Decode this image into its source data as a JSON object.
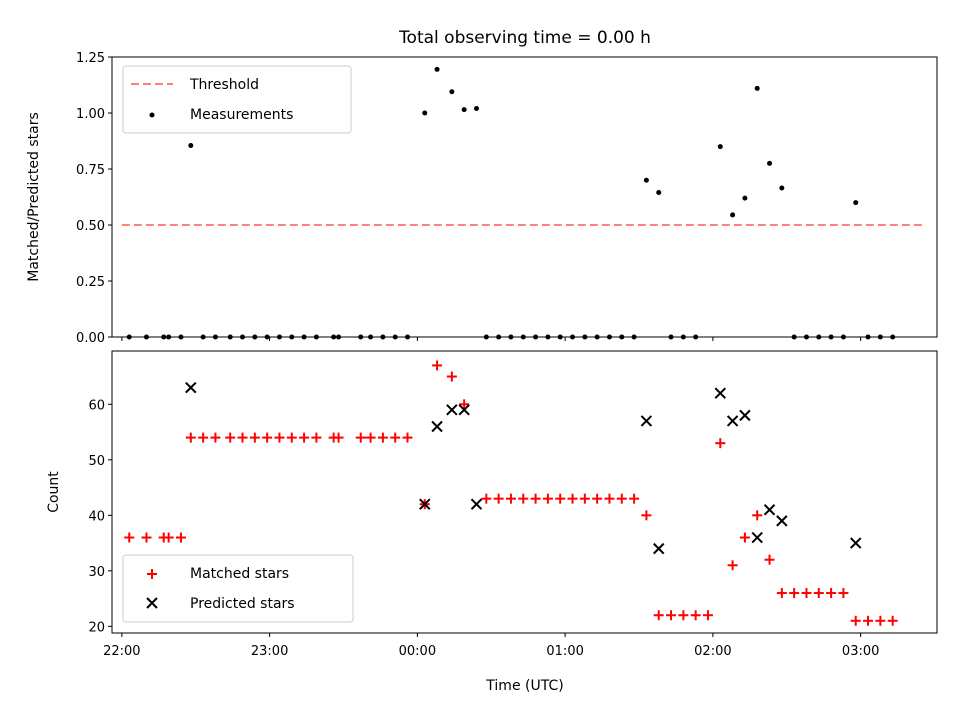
{
  "chart_data": [
    {
      "type": "scatter",
      "title": "Total observing time = 0.00 h",
      "xlabel": "",
      "ylabel": "Matched/Predicted stars",
      "xlim": [
        "21:56",
        "03:31"
      ],
      "ylim": [
        0,
        1.25
      ],
      "y_ticks": [
        "0.00",
        "0.25",
        "0.50",
        "0.75",
        "1.00",
        "1.25"
      ],
      "legend_placement": "upper-left",
      "series": [
        {
          "name": "Threshold",
          "style": "dashed-line",
          "color": "#ff7f7f",
          "points": [
            {
              "x": "22:00",
              "y": 0.5
            },
            {
              "x": "03:25",
              "y": 0.5
            }
          ]
        },
        {
          "name": "Measurements",
          "style": "dot",
          "color": "#000000",
          "points": [
            {
              "x": "22:03",
              "y": 0
            },
            {
              "x": "22:10",
              "y": 0
            },
            {
              "x": "22:17",
              "y": 0
            },
            {
              "x": "22:19",
              "y": 0
            },
            {
              "x": "22:24",
              "y": 0
            },
            {
              "x": "22:28",
              "y": 0.855
            },
            {
              "x": "22:33",
              "y": 0
            },
            {
              "x": "22:38",
              "y": 0
            },
            {
              "x": "22:44",
              "y": 0
            },
            {
              "x": "22:49",
              "y": 0
            },
            {
              "x": "22:54",
              "y": 0
            },
            {
              "x": "22:59",
              "y": 0
            },
            {
              "x": "23:04",
              "y": 0
            },
            {
              "x": "23:09",
              "y": 0
            },
            {
              "x": "23:14",
              "y": 0
            },
            {
              "x": "23:19",
              "y": 0
            },
            {
              "x": "23:26",
              "y": 0
            },
            {
              "x": "23:28",
              "y": 0
            },
            {
              "x": "23:37",
              "y": 0
            },
            {
              "x": "23:41",
              "y": 0
            },
            {
              "x": "23:46",
              "y": 0
            },
            {
              "x": "23:51",
              "y": 0
            },
            {
              "x": "23:56",
              "y": 0
            },
            {
              "x": "00:03",
              "y": 1.0
            },
            {
              "x": "00:08",
              "y": 1.195
            },
            {
              "x": "00:14",
              "y": 1.095
            },
            {
              "x": "00:19",
              "y": 1.015
            },
            {
              "x": "00:24",
              "y": 1.02
            },
            {
              "x": "00:28",
              "y": 0
            },
            {
              "x": "00:33",
              "y": 0
            },
            {
              "x": "00:38",
              "y": 0
            },
            {
              "x": "00:43",
              "y": 0
            },
            {
              "x": "00:48",
              "y": 0
            },
            {
              "x": "00:53",
              "y": 0
            },
            {
              "x": "00:58",
              "y": 0
            },
            {
              "x": "01:03",
              "y": 0
            },
            {
              "x": "01:08",
              "y": 0
            },
            {
              "x": "01:13",
              "y": 0
            },
            {
              "x": "01:18",
              "y": 0
            },
            {
              "x": "01:23",
              "y": 0
            },
            {
              "x": "01:28",
              "y": 0
            },
            {
              "x": "01:33",
              "y": 0.7
            },
            {
              "x": "01:38",
              "y": 0.645
            },
            {
              "x": "01:43",
              "y": 0
            },
            {
              "x": "01:48",
              "y": 0
            },
            {
              "x": "01:53",
              "y": 0
            },
            {
              "x": "02:03",
              "y": 0.85
            },
            {
              "x": "02:08",
              "y": 0.545
            },
            {
              "x": "02:13",
              "y": 0.62
            },
            {
              "x": "02:18",
              "y": 1.11
            },
            {
              "x": "02:23",
              "y": 0.775
            },
            {
              "x": "02:28",
              "y": 0.665
            },
            {
              "x": "02:33",
              "y": 0
            },
            {
              "x": "02:38",
              "y": 0
            },
            {
              "x": "02:43",
              "y": 0
            },
            {
              "x": "02:48",
              "y": 0
            },
            {
              "x": "02:53",
              "y": 0
            },
            {
              "x": "02:58",
              "y": 0.6
            },
            {
              "x": "03:03",
              "y": 0
            },
            {
              "x": "03:08",
              "y": 0
            },
            {
              "x": "03:13",
              "y": 0
            }
          ]
        }
      ]
    },
    {
      "type": "scatter",
      "title": "",
      "xlabel": "Time (UTC)",
      "ylabel": "Count",
      "xlim": [
        "21:56",
        "03:31"
      ],
      "ylim": [
        18.8,
        69.6
      ],
      "x_ticks": [
        "22:00",
        "23:00",
        "00:00",
        "01:00",
        "02:00",
        "03:00"
      ],
      "y_ticks": [
        "20",
        "30",
        "40",
        "50",
        "60"
      ],
      "legend_placement": "lower-left",
      "series": [
        {
          "name": "Matched stars",
          "style": "plus",
          "color": "#ff0000",
          "points": [
            {
              "x": "22:03",
              "y": 36
            },
            {
              "x": "22:10",
              "y": 36
            },
            {
              "x": "22:17",
              "y": 36
            },
            {
              "x": "22:19",
              "y": 36
            },
            {
              "x": "22:24",
              "y": 36
            },
            {
              "x": "22:28",
              "y": 54
            },
            {
              "x": "22:33",
              "y": 54
            },
            {
              "x": "22:38",
              "y": 54
            },
            {
              "x": "22:44",
              "y": 54
            },
            {
              "x": "22:49",
              "y": 54
            },
            {
              "x": "22:54",
              "y": 54
            },
            {
              "x": "22:59",
              "y": 54
            },
            {
              "x": "23:04",
              "y": 54
            },
            {
              "x": "23:09",
              "y": 54
            },
            {
              "x": "23:14",
              "y": 54
            },
            {
              "x": "23:19",
              "y": 54
            },
            {
              "x": "23:26",
              "y": 54
            },
            {
              "x": "23:28",
              "y": 54
            },
            {
              "x": "23:37",
              "y": 54
            },
            {
              "x": "23:41",
              "y": 54
            },
            {
              "x": "23:46",
              "y": 54
            },
            {
              "x": "23:51",
              "y": 54
            },
            {
              "x": "23:56",
              "y": 54
            },
            {
              "x": "00:03",
              "y": 42
            },
            {
              "x": "00:08",
              "y": 67
            },
            {
              "x": "00:14",
              "y": 65
            },
            {
              "x": "00:19",
              "y": 60
            },
            {
              "x": "00:28",
              "y": 43
            },
            {
              "x": "00:33",
              "y": 43
            },
            {
              "x": "00:38",
              "y": 43
            },
            {
              "x": "00:43",
              "y": 43
            },
            {
              "x": "00:48",
              "y": 43
            },
            {
              "x": "00:53",
              "y": 43
            },
            {
              "x": "00:58",
              "y": 43
            },
            {
              "x": "01:03",
              "y": 43
            },
            {
              "x": "01:08",
              "y": 43
            },
            {
              "x": "01:13",
              "y": 43
            },
            {
              "x": "01:18",
              "y": 43
            },
            {
              "x": "01:23",
              "y": 43
            },
            {
              "x": "01:28",
              "y": 43
            },
            {
              "x": "01:33",
              "y": 40
            },
            {
              "x": "01:38",
              "y": 22
            },
            {
              "x": "01:43",
              "y": 22
            },
            {
              "x": "01:48",
              "y": 22
            },
            {
              "x": "01:53",
              "y": 22
            },
            {
              "x": "01:58",
              "y": 22
            },
            {
              "x": "02:03",
              "y": 53
            },
            {
              "x": "02:08",
              "y": 31
            },
            {
              "x": "02:13",
              "y": 36
            },
            {
              "x": "02:18",
              "y": 40
            },
            {
              "x": "02:23",
              "y": 32
            },
            {
              "x": "02:28",
              "y": 26
            },
            {
              "x": "02:33",
              "y": 26
            },
            {
              "x": "02:38",
              "y": 26
            },
            {
              "x": "02:43",
              "y": 26
            },
            {
              "x": "02:48",
              "y": 26
            },
            {
              "x": "02:53",
              "y": 26
            },
            {
              "x": "02:58",
              "y": 21
            },
            {
              "x": "03:03",
              "y": 21
            },
            {
              "x": "03:08",
              "y": 21
            },
            {
              "x": "03:13",
              "y": 21
            }
          ]
        },
        {
          "name": "Predicted stars",
          "style": "x",
          "color": "#000000",
          "points": [
            {
              "x": "22:28",
              "y": 63
            },
            {
              "x": "00:03",
              "y": 42
            },
            {
              "x": "00:08",
              "y": 56
            },
            {
              "x": "00:14",
              "y": 59
            },
            {
              "x": "00:19",
              "y": 59
            },
            {
              "x": "00:24",
              "y": 42
            },
            {
              "x": "01:33",
              "y": 57
            },
            {
              "x": "01:38",
              "y": 34
            },
            {
              "x": "02:03",
              "y": 62
            },
            {
              "x": "02:08",
              "y": 57
            },
            {
              "x": "02:13",
              "y": 58
            },
            {
              "x": "02:18",
              "y": 36
            },
            {
              "x": "02:23",
              "y": 41
            },
            {
              "x": "02:28",
              "y": 39
            },
            {
              "x": "02:58",
              "y": 35
            }
          ]
        }
      ]
    }
  ]
}
